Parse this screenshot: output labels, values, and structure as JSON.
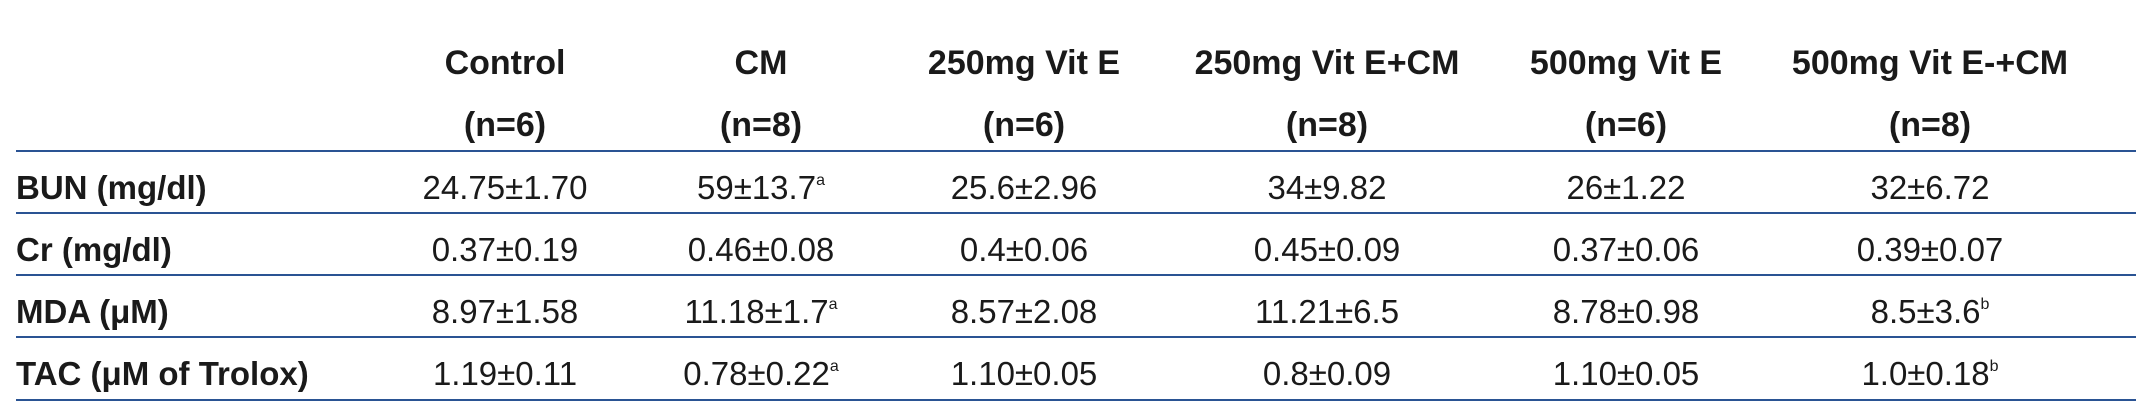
{
  "table": {
    "columns": [
      {
        "name": "Control",
        "n": "(n=6)"
      },
      {
        "name": "CM",
        "n": "(n=8)"
      },
      {
        "name": "250mg Vit E",
        "n": "(n=6)"
      },
      {
        "name": "250mg Vit E+CM",
        "n": "(n=8)"
      },
      {
        "name": "500mg Vit E",
        "n": "(n=6)"
      },
      {
        "name": "500mg Vit E-+CM",
        "n": "(n=8)"
      }
    ],
    "rows": [
      {
        "label": "BUN (mg/dl)",
        "cells": [
          {
            "text": "24.75±1.70"
          },
          {
            "text": "59±13.7",
            "sup": "a"
          },
          {
            "text": "25.6±2.96"
          },
          {
            "text": "34±9.82"
          },
          {
            "text": "26±1.22"
          },
          {
            "text": "32±6.72"
          }
        ]
      },
      {
        "label": "Cr (mg/dl)",
        "cells": [
          {
            "text": "0.37±0.19"
          },
          {
            "text": "0.46±0.08"
          },
          {
            "text": "0.4±0.06"
          },
          {
            "text": "0.45±0.09"
          },
          {
            "text": "0.37±0.06"
          },
          {
            "text": "0.39±0.07"
          }
        ]
      },
      {
        "label": "MDA (μM)",
        "cells": [
          {
            "text": "8.97±1.58"
          },
          {
            "text": "11.18±1.7",
            "sup": "a"
          },
          {
            "text": "8.57±2.08"
          },
          {
            "text": "11.21±6.5"
          },
          {
            "text": "8.78±0.98"
          },
          {
            "text": "8.5±3.6",
            "sup": "b"
          }
        ]
      },
      {
        "label": "TAC (μM of Trolox)",
        "cells": [
          {
            "text": "1.19±0.11"
          },
          {
            "text": "0.78±0.22",
            "sup": "a"
          },
          {
            "text": "1.10±0.05"
          },
          {
            "text": "0.8±0.09"
          },
          {
            "text": "1.10±0.05"
          },
          {
            "text": "1.0±0.18",
            "sup": "b"
          }
        ]
      }
    ]
  }
}
